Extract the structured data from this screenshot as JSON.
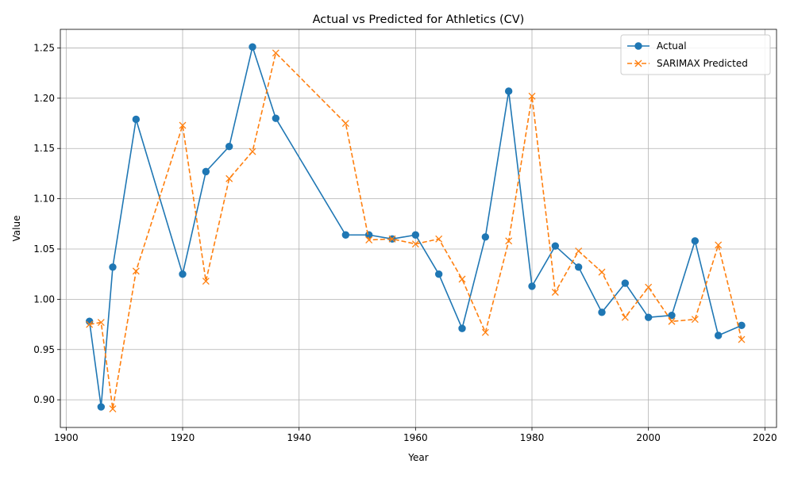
{
  "chart_data": {
    "type": "line",
    "title": "Actual vs Predicted for Athletics (CV)",
    "xlabel": "Year",
    "ylabel": "Value",
    "xlim": [
      1899,
      2022
    ],
    "ylim": [
      0.8725,
      1.2685
    ],
    "x_ticks": [
      1900,
      1920,
      1940,
      1960,
      1980,
      2000,
      2020
    ],
    "y_ticks": [
      0.9,
      0.95,
      1.0,
      1.05,
      1.1,
      1.15,
      1.2,
      1.25
    ],
    "grid": true,
    "legend_position": "top-right",
    "x": [
      1904,
      1906,
      1908,
      1912,
      1920,
      1924,
      1928,
      1932,
      1936,
      1948,
      1952,
      1956,
      1960,
      1964,
      1968,
      1972,
      1976,
      1980,
      1984,
      1988,
      1992,
      1996,
      2000,
      2004,
      2008,
      2012,
      2016
    ],
    "series": [
      {
        "name": "Actual",
        "color": "#1f77b4",
        "marker": "circle",
        "line_style": "solid",
        "values": [
          0.978,
          0.893,
          1.032,
          1.179,
          1.025,
          1.127,
          1.152,
          1.251,
          1.18,
          1.064,
          1.064,
          1.06,
          1.064,
          1.025,
          0.971,
          1.062,
          1.207,
          1.013,
          1.053,
          1.032,
          0.987,
          1.016,
          0.982,
          0.984,
          1.058,
          0.964,
          0.974
        ]
      },
      {
        "name": "SARIMAX Predicted",
        "color": "#ff7f0e",
        "marker": "x",
        "line_style": "dashed",
        "values": [
          0.975,
          0.977,
          0.891,
          1.028,
          1.173,
          1.018,
          1.12,
          1.147,
          1.245,
          1.175,
          1.059,
          1.06,
          1.055,
          1.06,
          1.02,
          0.967,
          1.058,
          1.202,
          1.007,
          1.048,
          1.027,
          0.982,
          1.012,
          0.978,
          0.98,
          1.054,
          0.96
        ]
      }
    ]
  }
}
